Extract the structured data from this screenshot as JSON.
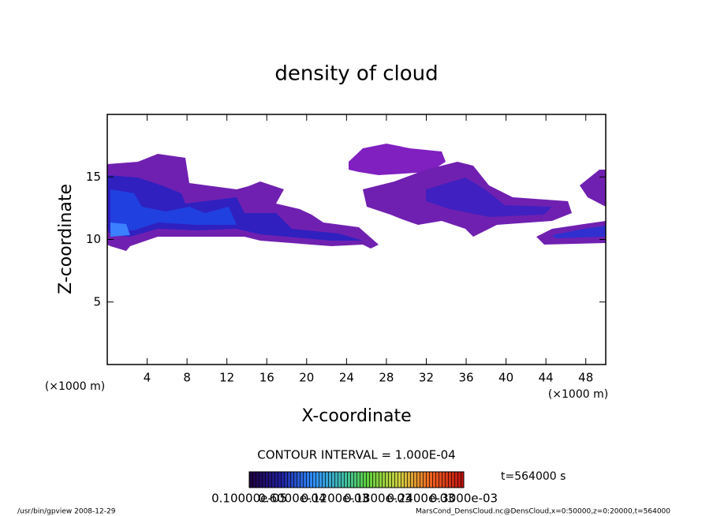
{
  "chart_data": {
    "type": "contour",
    "title": "density of cloud",
    "xlabel": "X-coordinate",
    "ylabel": "Z-coordinate",
    "xunit": "(×1000 m)",
    "yunit": "(×1000 m)",
    "xlim": [
      0,
      50
    ],
    "ylim": [
      0,
      20
    ],
    "xticks": [
      4,
      8,
      12,
      16,
      20,
      24,
      28,
      32,
      36,
      40,
      44,
      48
    ],
    "yticks": [
      5,
      10,
      15
    ],
    "contour_interval": "CONTOUR INTERVAL = 1.000E-04",
    "time": "t=564000 s",
    "colorbar_labels": [
      "0.10000e-05",
      "0.6000e-04",
      "0.1200e-03",
      "0.1800e-03",
      "0.2400e-03",
      "0.3000e-03"
    ],
    "footer_left": "/usr/bin/gpview   2008-12-29",
    "footer_right": "MarsCond_DensCloud.nc@DensCloud,x=0:50000,z=0:20000,t=564000"
  }
}
